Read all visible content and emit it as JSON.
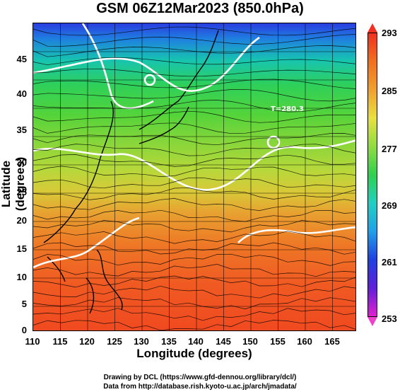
{
  "title": "GSM 06Z12Mar2023 (850.0hPa)",
  "xlabel": "Longitude (degrees)",
  "ylabel": "Latitude  (degrees)",
  "xticks": [
    "110",
    "115",
    "120",
    "125",
    "130",
    "135",
    "140",
    "145",
    "150",
    "155",
    "160",
    "165"
  ],
  "yticks": [
    "45",
    "40",
    "35",
    "30",
    "25",
    "20",
    "15",
    "10",
    "5",
    "0"
  ],
  "colorbar": {
    "ticks": [
      "293",
      "285",
      "277",
      "269",
      "261",
      "253"
    ]
  },
  "contour_label": "T=280.3",
  "credit1": "Drawing by DCL (https://www.gfd-dennou.org/library/dcl/)",
  "credit2": "Data from http://database.rish.kyoto-u.ac.jp/arch/jmadata/",
  "colors": {
    "warm": "#f04a20",
    "cool": "#2a3de0",
    "mid": "#2ed05a"
  }
}
